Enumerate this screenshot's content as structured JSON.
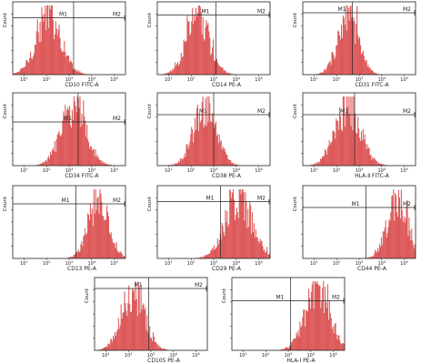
{
  "chart_data": [
    {
      "type": "histogram",
      "xlabel": "CD10 FITC-A",
      "ylabel": "Count",
      "marker_left": "M1",
      "marker_right": "M2",
      "x_scale": "log",
      "x_ticks": [
        "10^1",
        "10^2",
        "10^3",
        "10^4",
        "10^5"
      ],
      "peak_x": 1.6,
      "spread": 0.55,
      "gate_x": 2.7,
      "gate_level": 0.78,
      "fill_color": "#d73a3a"
    },
    {
      "type": "histogram",
      "xlabel": "CD14 PE-A",
      "ylabel": "Count",
      "marker_left": "M1",
      "marker_right": "M2",
      "x_scale": "log",
      "x_ticks": [
        "10^1",
        "10^2",
        "10^3",
        "10^4",
        "10^5"
      ],
      "peak_x": 1.8,
      "spread": 0.5,
      "gate_x": 2.6,
      "gate_level": 0.82,
      "fill_color": "#d73a3a"
    },
    {
      "type": "histogram",
      "xlabel": "CD31 FITC-A",
      "ylabel": "Count",
      "marker_left": "M1",
      "marker_right": "M2",
      "x_scale": "log",
      "x_ticks": [
        "10^1",
        "10^2",
        "10^3",
        "10^4",
        "10^5"
      ],
      "peak_x": 2.0,
      "spread": 0.45,
      "gate_x": 2.2,
      "gate_level": 0.85,
      "fill_color": "#d73a3a"
    },
    {
      "type": "histogram",
      "xlabel": "CD34 FITC-A",
      "ylabel": "Count",
      "marker_left": "M1",
      "marker_right": "M2",
      "x_scale": "log",
      "x_ticks": [
        "10^1",
        "10^2",
        "10^3",
        "10^4",
        "10^5"
      ],
      "peak_x": 2.7,
      "spread": 0.55,
      "gate_x": 2.9,
      "gate_level": 0.6,
      "fill_color": "#d73a3a"
    },
    {
      "type": "histogram",
      "xlabel": "CD38 PE-A",
      "ylabel": "Count",
      "marker_left": "M1",
      "marker_right": "M2",
      "x_scale": "log",
      "x_ticks": [
        "10^1",
        "10^2",
        "10^3",
        "10^4",
        "10^5"
      ],
      "peak_x": 2.1,
      "spread": 0.5,
      "gate_x": 2.5,
      "gate_level": 0.7,
      "fill_color": "#d73a3a"
    },
    {
      "type": "histogram",
      "xlabel": "HLA-Ⅱ FITC-A",
      "ylabel": "Count",
      "marker_left": "M1",
      "marker_right": "M2",
      "x_scale": "log",
      "x_ticks": [
        "10^1",
        "10^2",
        "10^3",
        "10^4",
        "10^5"
      ],
      "peak_x": 2.0,
      "spread": 0.55,
      "gate_x": 2.3,
      "gate_level": 0.7,
      "fill_color": "#d73a3a"
    },
    {
      "type": "histogram",
      "xlabel": "CD13 PE-A",
      "ylabel": "Count",
      "marker_left": "M1",
      "marker_right": "M2",
      "x_scale": "log",
      "x_ticks": [
        "10^1",
        "10^2",
        "10^3",
        "10^4",
        "10^5"
      ],
      "peak_x": 3.8,
      "spread": 0.45,
      "gate_x": 2.8,
      "gate_level": 0.75,
      "fill_color": "#d73a3a"
    },
    {
      "type": "histogram",
      "xlabel": "CD29 PE-A",
      "ylabel": "Count",
      "marker_left": "M1",
      "marker_right": "M2",
      "x_scale": "log",
      "x_ticks": [
        "10^1",
        "10^2",
        "10^3",
        "10^4",
        "10^5"
      ],
      "peak_x": 3.6,
      "spread": 0.6,
      "gate_x": 2.8,
      "gate_level": 0.78,
      "fill_color": "#d73a3a"
    },
    {
      "type": "histogram",
      "xlabel": "CD44 PE-A",
      "ylabel": "Count",
      "marker_left": "M1",
      "marker_right": "M2",
      "x_scale": "log",
      "x_ticks": [
        "10^1",
        "10^2",
        "10^3",
        "10^4",
        "10^5"
      ],
      "peak_x": 4.2,
      "spread": 0.45,
      "gate_x": 2.8,
      "gate_level": 0.7,
      "fill_color": "#d73a3a"
    },
    {
      "type": "histogram",
      "xlabel": "CD105 PE-A",
      "ylabel": "Count",
      "marker_left": "M1",
      "marker_right": "M2",
      "x_scale": "log",
      "x_ticks": [
        "10^1",
        "10^2",
        "10^3",
        "10^4",
        "10^5"
      ],
      "peak_x": 1.7,
      "spread": 0.5,
      "gate_x": 2.4,
      "gate_level": 0.85,
      "fill_color": "#d73a3a"
    },
    {
      "type": "histogram",
      "xlabel": "HLA-Ⅰ PE-A",
      "ylabel": "Count",
      "marker_left": "M1",
      "marker_right": "M2",
      "x_scale": "log",
      "x_ticks": [
        "10^1",
        "10^2",
        "10^3",
        "10^4",
        "10^5"
      ],
      "peak_x": 3.8,
      "spread": 0.55,
      "gate_x": 2.6,
      "gate_level": 0.68,
      "fill_color": "#d73a3a"
    }
  ]
}
